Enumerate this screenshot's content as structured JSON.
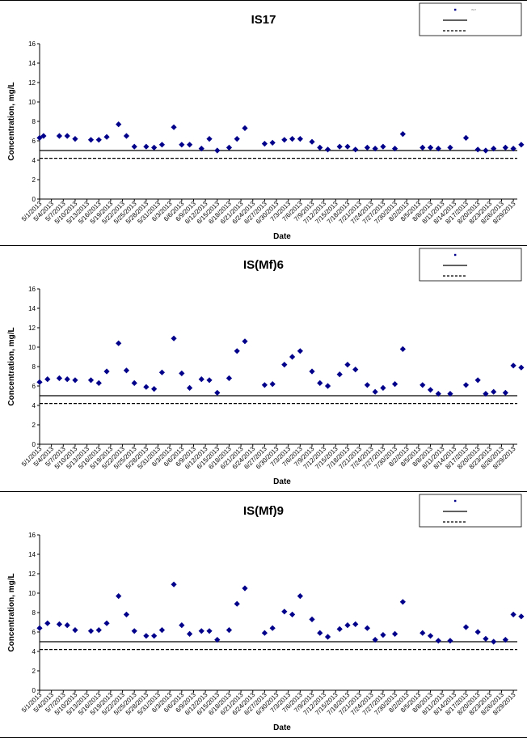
{
  "chart_data": [
    {
      "type": "scatter",
      "title": "IS17",
      "xlabel": "Date",
      "ylabel": "Concentration, mg/L",
      "ylim": [
        0,
        16
      ],
      "yticks": [
        0,
        2,
        4,
        6,
        8,
        10,
        12,
        14,
        16
      ],
      "grid": false,
      "legend_placement": "top-right",
      "xticks": [
        "5/1/2013",
        "5/4/2013",
        "5/7/2013",
        "5/10/2013",
        "5/13/2013",
        "5/16/2013",
        "5/19/2013",
        "5/22/2013",
        "5/25/2013",
        "5/28/2013",
        "5/31/2013",
        "6/3/2013",
        "6/6/2013",
        "6/9/2013",
        "6/12/2013",
        "6/15/2013",
        "6/18/2013",
        "6/21/2013",
        "6/24/2013",
        "6/27/2013",
        "6/30/2013",
        "7/3/2013",
        "7/6/2013",
        "7/9/2013",
        "7/12/2013",
        "7/15/2013",
        "7/18/2013",
        "7/21/2013",
        "7/24/2013",
        "7/27/2013",
        "7/30/2013",
        "8/2/2013",
        "8/5/2013",
        "8/8/2013",
        "8/11/2013",
        "8/14/2013",
        "8/17/2013",
        "8/20/2013",
        "8/23/2013",
        "8/26/2013",
        "8/29/2013"
      ],
      "xdomain": [
        "5/1/2013",
        "8/30/2013"
      ],
      "series": [
        {
          "name": "IS17",
          "marker": "diamond",
          "color": "#00008B",
          "x": [
            "5/1/2013",
            "5/2/2013",
            "5/6/2013",
            "5/8/2013",
            "5/10/2013",
            "5/14/2013",
            "5/16/2013",
            "5/18/2013",
            "5/21/2013",
            "5/23/2013",
            "5/25/2013",
            "5/28/2013",
            "5/30/2013",
            "6/1/2013",
            "6/4/2013",
            "6/6/2013",
            "6/8/2013",
            "6/11/2013",
            "6/13/2013",
            "6/15/2013",
            "6/18/2013",
            "6/20/2013",
            "6/22/2013",
            "6/27/2013",
            "6/29/2013",
            "7/2/2013",
            "7/4/2013",
            "7/6/2013",
            "7/9/2013",
            "7/11/2013",
            "7/13/2013",
            "7/16/2013",
            "7/18/2013",
            "7/20/2013",
            "7/23/2013",
            "7/25/2013",
            "7/27/2013",
            "7/30/2013",
            "8/1/2013",
            "8/6/2013",
            "8/8/2013",
            "8/10/2013",
            "8/13/2013",
            "8/17/2013",
            "8/20/2013",
            "8/22/2013",
            "8/24/2013",
            "8/27/2013",
            "8/29/2013",
            "8/31/2013"
          ],
          "y": [
            6.3,
            6.5,
            6.5,
            6.5,
            6.2,
            6.1,
            6.1,
            6.4,
            7.7,
            6.5,
            5.4,
            5.4,
            5.3,
            5.6,
            7.4,
            5.6,
            5.6,
            5.2,
            6.2,
            5.0,
            5.3,
            6.2,
            7.3,
            5.7,
            5.8,
            6.1,
            6.2,
            6.2,
            5.9,
            5.3,
            5.1,
            5.4,
            5.4,
            5.1,
            5.3,
            5.2,
            5.4,
            5.2,
            6.7,
            5.3,
            5.3,
            5.2,
            5.3,
            6.3,
            5.1,
            5.0,
            5.2,
            5.3,
            5.2,
            5.6
          ]
        }
      ],
      "reference_lines": [
        5.0,
        4.2
      ],
      "legend_entries": [
        "IS17",
        "",
        ""
      ]
    },
    {
      "type": "scatter",
      "title": "IS(Mf)6",
      "xlabel": "Date",
      "ylabel": "Concentration, mg/L",
      "ylim": [
        0,
        16
      ],
      "yticks": [
        0,
        2,
        4,
        6,
        8,
        10,
        12,
        14,
        16
      ],
      "grid": false,
      "legend_placement": "top-right",
      "xticks": [
        "5/1/2013",
        "5/4/2013",
        "5/7/2013",
        "5/10/2013",
        "5/13/2013",
        "5/16/2013",
        "5/19/2013",
        "5/22/2013",
        "5/25/2013",
        "5/28/2013",
        "5/31/2013",
        "6/3/2013",
        "6/6/2013",
        "6/9/2013",
        "6/12/2013",
        "6/15/2013",
        "6/18/2013",
        "6/21/2013",
        "6/24/2013",
        "6/27/2013",
        "6/30/2013",
        "7/3/2013",
        "7/6/2013",
        "7/9/2013",
        "7/12/2013",
        "7/15/2013",
        "7/18/2013",
        "7/21/2013",
        "7/24/2013",
        "7/27/2013",
        "7/30/2013",
        "8/2/2013",
        "8/5/2013",
        "8/8/2013",
        "8/11/2013",
        "8/14/2013",
        "8/17/2013",
        "8/20/2013",
        "8/23/2013",
        "8/26/2013",
        "8/29/2013"
      ],
      "xdomain": [
        "5/1/2013",
        "8/30/2013"
      ],
      "series": [
        {
          "name": "",
          "marker": "diamond",
          "color": "#00008B",
          "x": [
            "5/1/2013",
            "5/3/2013",
            "5/6/2013",
            "5/8/2013",
            "5/10/2013",
            "5/14/2013",
            "5/16/2013",
            "5/18/2013",
            "5/21/2013",
            "5/23/2013",
            "5/25/2013",
            "5/28/2013",
            "5/30/2013",
            "6/1/2013",
            "6/4/2013",
            "6/6/2013",
            "6/8/2013",
            "6/11/2013",
            "6/13/2013",
            "6/15/2013",
            "6/18/2013",
            "6/20/2013",
            "6/22/2013",
            "6/27/2013",
            "6/29/2013",
            "7/2/2013",
            "7/4/2013",
            "7/6/2013",
            "7/9/2013",
            "7/11/2013",
            "7/13/2013",
            "7/16/2013",
            "7/18/2013",
            "7/20/2013",
            "7/23/2013",
            "7/25/2013",
            "7/27/2013",
            "7/30/2013",
            "8/1/2013",
            "8/6/2013",
            "8/8/2013",
            "8/10/2013",
            "8/13/2013",
            "8/17/2013",
            "8/20/2013",
            "8/22/2013",
            "8/24/2013",
            "8/27/2013",
            "8/29/2013",
            "8/31/2013"
          ],
          "y": [
            6.4,
            6.7,
            6.8,
            6.7,
            6.6,
            6.6,
            6.3,
            7.5,
            10.4,
            7.6,
            6.3,
            5.9,
            5.7,
            7.4,
            10.9,
            7.3,
            5.8,
            6.7,
            6.6,
            5.3,
            6.8,
            9.6,
            10.6,
            6.1,
            6.2,
            8.2,
            9.0,
            9.6,
            7.5,
            6.3,
            6.0,
            7.2,
            8.2,
            7.7,
            6.1,
            5.4,
            5.8,
            6.2,
            9.8,
            6.1,
            5.6,
            5.2,
            5.2,
            6.1,
            6.6,
            5.2,
            5.4,
            5.3,
            8.1,
            7.9
          ]
        }
      ],
      "reference_lines": [
        5.0,
        4.2
      ],
      "legend_entries": [
        "",
        "",
        ""
      ]
    },
    {
      "type": "scatter",
      "title": "IS(Mf)9",
      "xlabel": "Date",
      "ylabel": "Concentration, mg/L",
      "ylim": [
        0,
        16
      ],
      "yticks": [
        0,
        2,
        4,
        6,
        8,
        10,
        12,
        14,
        16
      ],
      "grid": false,
      "legend_placement": "top-right",
      "xticks": [
        "5/1/2013",
        "5/4/2013",
        "5/7/2013",
        "5/10/2013",
        "5/13/2013",
        "5/16/2013",
        "5/19/2013",
        "5/22/2013",
        "5/25/2013",
        "5/28/2013",
        "5/31/2013",
        "6/3/2013",
        "6/6/2013",
        "6/9/2013",
        "6/12/2013",
        "6/15/2013",
        "6/18/2013",
        "6/21/2013",
        "6/24/2013",
        "6/27/2013",
        "6/30/2013",
        "7/3/2013",
        "7/6/2013",
        "7/9/2013",
        "7/12/2013",
        "7/15/2013",
        "7/18/2013",
        "7/21/2013",
        "7/24/2013",
        "7/27/2013",
        "7/30/2013",
        "8/2/2013",
        "8/5/2013",
        "8/8/2013",
        "8/11/2013",
        "8/14/2013",
        "8/17/2013",
        "8/20/2013",
        "8/23/2013",
        "8/26/2013",
        "8/29/2013"
      ],
      "xdomain": [
        "5/1/2013",
        "8/30/2013"
      ],
      "series": [
        {
          "name": "",
          "marker": "diamond",
          "color": "#00008B",
          "x": [
            "5/1/2013",
            "5/3/2013",
            "5/6/2013",
            "5/8/2013",
            "5/10/2013",
            "5/14/2013",
            "5/16/2013",
            "5/18/2013",
            "5/21/2013",
            "5/23/2013",
            "5/25/2013",
            "5/28/2013",
            "5/30/2013",
            "6/1/2013",
            "6/4/2013",
            "6/6/2013",
            "6/8/2013",
            "6/11/2013",
            "6/13/2013",
            "6/15/2013",
            "6/18/2013",
            "6/20/2013",
            "6/22/2013",
            "6/27/2013",
            "6/29/2013",
            "7/2/2013",
            "7/4/2013",
            "7/6/2013",
            "7/9/2013",
            "7/11/2013",
            "7/13/2013",
            "7/16/2013",
            "7/18/2013",
            "7/20/2013",
            "7/23/2013",
            "7/25/2013",
            "7/27/2013",
            "7/30/2013",
            "8/1/2013",
            "8/6/2013",
            "8/8/2013",
            "8/10/2013",
            "8/13/2013",
            "8/17/2013",
            "8/20/2013",
            "8/22/2013",
            "8/24/2013",
            "8/27/2013",
            "8/29/2013",
            "8/31/2013"
          ],
          "y": [
            6.4,
            6.9,
            6.8,
            6.7,
            6.2,
            6.1,
            6.2,
            6.9,
            9.7,
            7.8,
            6.1,
            5.6,
            5.6,
            6.2,
            10.9,
            6.7,
            5.8,
            6.1,
            6.1,
            5.2,
            6.2,
            8.9,
            10.5,
            5.9,
            6.4,
            8.1,
            7.8,
            9.7,
            7.3,
            5.9,
            5.5,
            6.3,
            6.7,
            6.8,
            6.4,
            5.2,
            5.7,
            5.8,
            9.1,
            5.9,
            5.6,
            5.1,
            5.1,
            6.5,
            6.0,
            5.3,
            5.0,
            5.2,
            7.8,
            7.6
          ]
        }
      ],
      "reference_lines": [
        5.0,
        4.2
      ],
      "legend_entries": [
        "",
        "",
        ""
      ]
    }
  ]
}
